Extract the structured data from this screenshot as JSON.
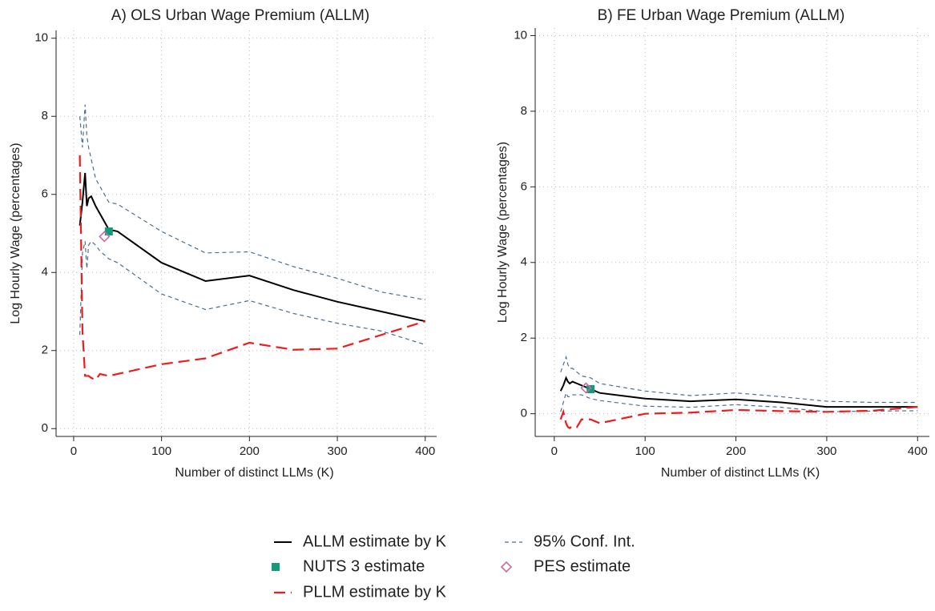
{
  "chart_data": [
    {
      "type": "line",
      "title": "A) OLS Urban Wage Premium (ALLM)",
      "x_label": "Number of distinct LLMs (K)",
      "y_label": "Log Hourly Wage (percentages)",
      "x": [
        7,
        10,
        13,
        15,
        17,
        20,
        25,
        30,
        40,
        50,
        100,
        150,
        200,
        250,
        300,
        350,
        400
      ],
      "xlim": [
        -20,
        413
      ],
      "ylim": [
        -0.2,
        10.2
      ],
      "xticks": [
        0,
        100,
        200,
        300,
        400
      ],
      "yticks": [
        0,
        2,
        4,
        6,
        8,
        10
      ],
      "grid": true,
      "series": [
        {
          "name": "ALLM estimate by K",
          "color": "#000000",
          "dash": "solid",
          "values": [
            5.2,
            5.8,
            6.55,
            5.7,
            5.9,
            5.95,
            5.7,
            5.5,
            5.1,
            5.05,
            4.25,
            3.78,
            3.92,
            3.55,
            3.25,
            3.0,
            2.75
          ]
        },
        {
          "name": "95% Conf. Int.",
          "color": "#4a6f91",
          "dash": "short",
          "values": [
            8.0,
            7.2,
            8.3,
            7.5,
            7.2,
            6.9,
            6.4,
            6.2,
            5.8,
            5.75,
            5.05,
            4.5,
            4.53,
            4.15,
            3.85,
            3.5,
            3.3
          ]
        },
        {
          "color": "#4a6f91",
          "dash": "short",
          "values": [
            2.4,
            4.5,
            4.8,
            4.1,
            4.7,
            4.8,
            4.7,
            4.55,
            4.35,
            4.25,
            3.45,
            3.05,
            3.28,
            2.95,
            2.7,
            2.5,
            2.15
          ]
        },
        {
          "name": "PLLM estimate by K",
          "color": "#ee1c1c",
          "dash": "long",
          "values": [
            7.0,
            2.5,
            1.35,
            1.35,
            1.35,
            1.3,
            1.25,
            1.4,
            1.35,
            1.4,
            1.65,
            1.8,
            2.2,
            2.02,
            2.05,
            2.4,
            2.75
          ]
        }
      ],
      "markers": [
        {
          "name": "NUTS 3 estimate",
          "color": "#139a7a",
          "shape": "square",
          "x": 40,
          "y": 5.05
        },
        {
          "name": "PES estimate",
          "color": "#c66da6",
          "shape": "diamond",
          "x": 35,
          "y": 4.92
        }
      ]
    },
    {
      "type": "line",
      "title": "B) FE Urban Wage Premium (ALLM)",
      "x_label": "Number of distinct LLMs (K)",
      "y_label": "Log Hourly Wage (percentages)",
      "x": [
        7,
        10,
        13,
        15,
        17,
        20,
        25,
        30,
        40,
        50,
        100,
        150,
        200,
        250,
        300,
        350,
        400
      ],
      "xlim": [
        -21,
        413
      ],
      "ylim": [
        -0.6,
        10.2
      ],
      "xticks": [
        0,
        100,
        200,
        300,
        400
      ],
      "yticks": [
        0,
        2,
        4,
        6,
        8,
        10
      ],
      "grid": true,
      "series": [
        {
          "color": "#000000",
          "dash": "solid",
          "values": [
            0.6,
            0.75,
            0.95,
            0.85,
            0.8,
            0.85,
            0.8,
            0.75,
            0.65,
            0.55,
            0.4,
            0.33,
            0.38,
            0.3,
            0.18,
            0.18,
            0.18
          ]
        },
        {
          "color": "#4a6f91",
          "dash": "short",
          "values": [
            1.1,
            1.3,
            1.5,
            1.3,
            1.2,
            1.2,
            1.1,
            1.0,
            0.95,
            0.8,
            0.6,
            0.48,
            0.55,
            0.45,
            0.33,
            0.3,
            0.3
          ]
        },
        {
          "color": "#4a6f91",
          "dash": "short",
          "values": [
            0.05,
            0.3,
            0.55,
            0.45,
            0.45,
            0.5,
            0.5,
            0.5,
            0.4,
            0.35,
            0.2,
            0.17,
            0.24,
            0.17,
            0.05,
            0.07,
            0.08
          ]
        },
        {
          "color": "#ee1c1c",
          "dash": "long",
          "values": [
            -0.15,
            0.05,
            -0.25,
            -0.35,
            -0.38,
            -0.32,
            -0.35,
            -0.15,
            -0.15,
            -0.25,
            0.0,
            0.03,
            0.1,
            0.07,
            0.05,
            0.08,
            0.18
          ]
        }
      ],
      "markers": [
        {
          "color": "#139a7a",
          "shape": "square",
          "x": 40,
          "y": 0.65
        },
        {
          "color": "#c66da6",
          "shape": "diamond",
          "x": 35,
          "y": 0.68
        }
      ]
    }
  ]
}
